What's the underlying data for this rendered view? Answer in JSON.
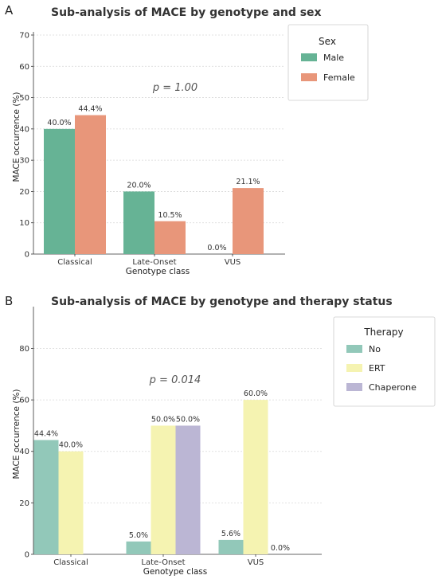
{
  "chart_data": [
    {
      "panel": "A",
      "type": "bar",
      "title": "Sub-analysis of MACE by genotype and sex",
      "xlabel": "Genotype class",
      "ylabel": "MACE occurrence (%)",
      "ylim": [
        0,
        70
      ],
      "yticks": [
        0,
        10,
        20,
        30,
        40,
        50,
        60,
        70
      ],
      "categories": [
        "Classical",
        "Late-Onset",
        "VUS"
      ],
      "series": [
        {
          "name": "Male",
          "color": "#66b395",
          "values": [
            40.0,
            20.0,
            0.0
          ],
          "labels": [
            "40.0%",
            "20.0%",
            "0.0%"
          ]
        },
        {
          "name": "Female",
          "color": "#e8967a",
          "values": [
            44.4,
            10.5,
            21.1
          ],
          "labels": [
            "44.4%",
            "10.5%",
            "21.1%"
          ]
        }
      ],
      "annotation": "p = 1.00",
      "legend": {
        "title": "Sex",
        "placement": "outside-right"
      },
      "grid": true
    },
    {
      "panel": "B",
      "type": "bar",
      "title": "Sub-analysis of MACE by genotype and therapy status",
      "xlabel": "Genotype class",
      "ylabel": "MACE occurrence (%)",
      "ylim": [
        0,
        95
      ],
      "yticks": [
        0,
        20,
        40,
        60,
        80
      ],
      "categories": [
        "Classical",
        "Late-Onset",
        "VUS"
      ],
      "series": [
        {
          "name": "No",
          "color": "#92c8b9",
          "values": [
            44.4,
            5.0,
            5.6
          ],
          "labels": [
            "44.4%",
            "5.0%",
            "5.6%"
          ]
        },
        {
          "name": "ERT",
          "color": "#f5f3b1",
          "values": [
            40.0,
            50.0,
            60.0
          ],
          "labels": [
            "40.0%",
            "50.0%",
            "60.0%"
          ]
        },
        {
          "name": "Chaperone",
          "color": "#bbb6d4",
          "values": [
            null,
            50.0,
            0.0
          ],
          "labels": [
            null,
            "50.0%",
            "0.0%"
          ]
        }
      ],
      "annotation": "p = 0.014",
      "legend": {
        "title": "Therapy",
        "placement": "outside-right"
      },
      "grid": true
    }
  ]
}
